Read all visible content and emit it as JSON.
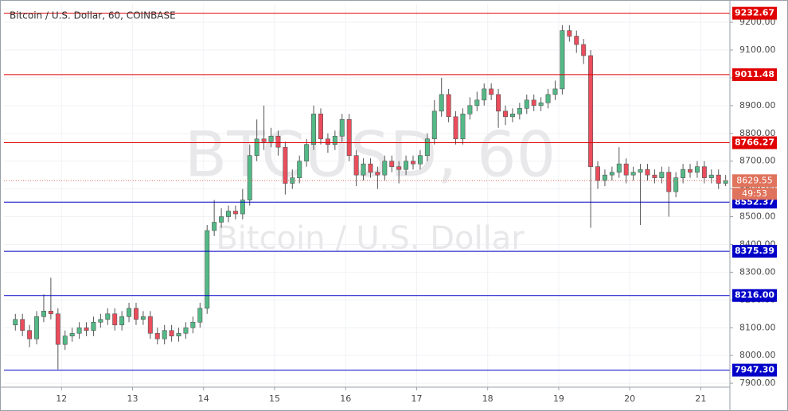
{
  "chart_data": {
    "type": "candlestick",
    "title": "Bitcoin / U.S. Dollar, 60, COINBASE",
    "watermark": "BTCUSD, 60",
    "watermark_sub": "Bitcoin / U.S. Dollar",
    "up_color": "#53b987",
    "down_color": "#eb4d5c",
    "x": [
      11.35,
      11.45,
      11.55,
      11.65,
      11.75,
      11.85,
      11.95,
      12.05,
      12.15,
      12.25,
      12.35,
      12.45,
      12.55,
      12.65,
      12.75,
      12.85,
      12.95,
      13.05,
      13.15,
      13.25,
      13.35,
      13.45,
      13.55,
      13.65,
      13.75,
      13.85,
      13.95,
      14.05,
      14.15,
      14.25,
      14.35,
      14.45,
      14.55,
      14.65,
      14.75,
      14.85,
      14.95,
      15.05,
      15.15,
      15.25,
      15.35,
      15.45,
      15.55,
      15.65,
      15.75,
      15.85,
      15.95,
      16.05,
      16.15,
      16.25,
      16.35,
      16.45,
      16.55,
      16.65,
      16.75,
      16.85,
      16.95,
      17.05,
      17.15,
      17.25,
      17.35,
      17.45,
      17.55,
      17.65,
      17.75,
      17.85,
      17.95,
      18.05,
      18.15,
      18.25,
      18.35,
      18.45,
      18.55,
      18.65,
      18.75,
      18.85,
      18.95,
      19.05,
      19.15,
      19.25,
      19.35,
      19.45,
      19.55,
      19.65,
      19.75,
      19.85,
      19.95,
      20.05,
      20.15,
      20.25,
      20.35,
      20.45,
      20.55,
      20.65,
      20.75,
      20.85,
      20.95,
      21.05,
      21.15,
      21.25,
      21.35
    ],
    "open": [
      8110,
      8130,
      8090,
      8060,
      8140,
      8160,
      8150,
      8040,
      8070,
      8080,
      8100,
      8090,
      8120,
      8130,
      8150,
      8110,
      8140,
      8170,
      8130,
      8140,
      8080,
      8060,
      8090,
      8070,
      8080,
      8100,
      8120,
      8170,
      8450,
      8480,
      8500,
      8520,
      8510,
      8560,
      8720,
      8780,
      8770,
      8790,
      8750,
      8620,
      8640,
      8700,
      8760,
      8870,
      8780,
      8760,
      8790,
      8850,
      8720,
      8650,
      8690,
      8660,
      8650,
      8700,
      8680,
      8670,
      8700,
      8690,
      8720,
      8780,
      8880,
      8940,
      8860,
      8780,
      8870,
      8900,
      8920,
      8960,
      8940,
      8880,
      8860,
      8870,
      8890,
      8920,
      8900,
      8910,
      8940,
      8960,
      9170,
      9150,
      9120,
      9080,
      8680,
      8630,
      8650,
      8660,
      8690,
      8650,
      8660,
      8670,
      8650,
      8640,
      8660,
      8590,
      8640,
      8670,
      8660,
      8680,
      8640,
      8650,
      8620
    ],
    "high": [
      8150,
      8150,
      8110,
      8160,
      8220,
      8280,
      8170,
      8090,
      8100,
      8120,
      8120,
      8140,
      8150,
      8170,
      8170,
      8160,
      8190,
      8190,
      8160,
      8160,
      8100,
      8110,
      8110,
      8100,
      8120,
      8140,
      8190,
      8470,
      8560,
      8530,
      8540,
      8540,
      8600,
      8760,
      8850,
      8900,
      8820,
      8810,
      8770,
      8670,
      8720,
      8780,
      8900,
      8890,
      8800,
      8810,
      8870,
      8870,
      8740,
      8710,
      8710,
      8680,
      8720,
      8720,
      8700,
      8720,
      8720,
      8740,
      8800,
      8920,
      9000,
      8960,
      8880,
      8890,
      8930,
      8950,
      8980,
      8980,
      8960,
      8900,
      8890,
      8910,
      8940,
      8940,
      8930,
      8960,
      8990,
      9190,
      9190,
      9170,
      9140,
      9100,
      8700,
      8670,
      8680,
      8750,
      8710,
      8680,
      8690,
      8690,
      8670,
      8680,
      8680,
      8660,
      8690,
      8690,
      8700,
      8700,
      8670,
      8670,
      8650
    ],
    "low": [
      8090,
      8070,
      8030,
      8040,
      8120,
      8130,
      7950,
      8020,
      8050,
      8060,
      8070,
      8070,
      8100,
      8110,
      8090,
      8090,
      8120,
      8110,
      8110,
      8060,
      8040,
      8040,
      8050,
      8050,
      8060,
      8080,
      8100,
      8150,
      8430,
      8460,
      8480,
      8490,
      8490,
      8540,
      8700,
      8740,
      8750,
      8720,
      8580,
      8600,
      8620,
      8680,
      8740,
      8760,
      8730,
      8740,
      8770,
      8700,
      8610,
      8630,
      8640,
      8600,
      8630,
      8660,
      8620,
      8650,
      8670,
      8670,
      8700,
      8760,
      8860,
      8840,
      8760,
      8760,
      8850,
      8880,
      8900,
      8920,
      8820,
      8830,
      8840,
      8850,
      8870,
      8880,
      8880,
      8890,
      8920,
      8940,
      9130,
      9090,
      9050,
      8460,
      8600,
      8610,
      8630,
      8640,
      8620,
      8630,
      8470,
      8630,
      8620,
      8620,
      8500,
      8570,
      8620,
      8640,
      8640,
      8620,
      8620,
      8600,
      8610
    ],
    "close": [
      8130,
      8090,
      8060,
      8140,
      8160,
      8150,
      8040,
      8070,
      8080,
      8100,
      8090,
      8120,
      8130,
      8150,
      8110,
      8140,
      8170,
      8130,
      8140,
      8080,
      8060,
      8090,
      8070,
      8080,
      8100,
      8120,
      8170,
      8450,
      8480,
      8500,
      8520,
      8510,
      8560,
      8720,
      8780,
      8770,
      8790,
      8750,
      8620,
      8640,
      8700,
      8760,
      8870,
      8780,
      8760,
      8790,
      8850,
      8720,
      8650,
      8690,
      8660,
      8650,
      8700,
      8680,
      8670,
      8700,
      8690,
      8720,
      8780,
      8880,
      8940,
      8860,
      8780,
      8870,
      8900,
      8920,
      8960,
      8940,
      8880,
      8860,
      8870,
      8890,
      8920,
      8900,
      8910,
      8940,
      8960,
      9170,
      9150,
      9120,
      9080,
      8680,
      8630,
      8650,
      8660,
      8690,
      8650,
      8660,
      8670,
      8650,
      8640,
      8660,
      8590,
      8640,
      8670,
      8660,
      8680,
      8640,
      8650,
      8620,
      8629.55
    ],
    "last_price_label": "8629.55",
    "countdown": "49:53",
    "xlim": [
      11.19,
      21.41
    ],
    "xticks": [
      12,
      13,
      14,
      15,
      16,
      17,
      18,
      19,
      20,
      21
    ],
    "ylim": [
      7886,
      9266
    ],
    "yticks": [
      {
        "value": 7900,
        "label": "7900.00"
      },
      {
        "value": 8000,
        "label": "8000.00"
      },
      {
        "value": 8100,
        "label": "8100.00"
      },
      {
        "value": 8200,
        "label": "8200.00"
      },
      {
        "value": 8300,
        "label": "8300.00"
      },
      {
        "value": 8400,
        "label": "8400.00"
      },
      {
        "value": 8500,
        "label": "8500.00"
      },
      {
        "value": 8600,
        "label": "8600.00"
      },
      {
        "value": 8700,
        "label": "8700.00"
      },
      {
        "value": 8800,
        "label": "8800.00"
      },
      {
        "value": 8900,
        "label": "8900.00"
      },
      {
        "value": 9000,
        "label": "9000.00"
      },
      {
        "value": 9100,
        "label": "9100.00"
      },
      {
        "value": 9200,
        "label": "9200.00"
      }
    ],
    "levels": [
      {
        "value": 9232.67,
        "label": "9232.67",
        "color": "#e00000"
      },
      {
        "value": 9011.48,
        "label": "9011.48",
        "color": "#e00000"
      },
      {
        "value": 8766.27,
        "label": "8766.27",
        "color": "#e00000"
      },
      {
        "value": 8552.37,
        "label": "8552.37",
        "color": "#0000c8"
      },
      {
        "value": 8375.39,
        "label": "8375.39",
        "color": "#0000c8"
      },
      {
        "value": 8216,
        "label": "8216.00",
        "color": "#0000c8"
      },
      {
        "value": 7947.3,
        "label": "7947.30",
        "color": "#0000c8"
      }
    ],
    "last_price_color": "#e0735c",
    "grid": true
  }
}
